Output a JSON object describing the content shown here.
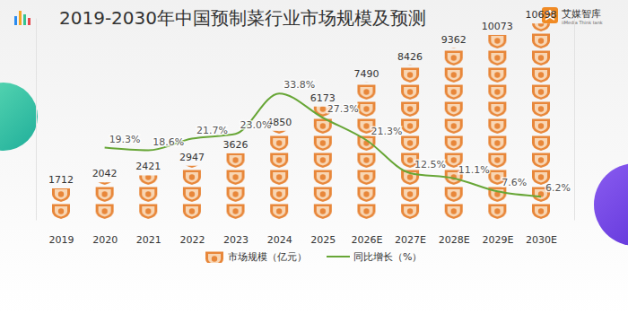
{
  "chart_data": {
    "type": "bar",
    "title": "2019-2030年中国预制菜行业市场规模及预测",
    "annotations": [
      "艾媒智库",
      "iiMedia Think tank"
    ],
    "categories": [
      "2019",
      "2020",
      "2021",
      "2022",
      "2023",
      "2024",
      "2025",
      "2026E",
      "2027E",
      "2028E",
      "2029E",
      "2030E"
    ],
    "series": [
      {
        "name": "市场规模（亿元）",
        "type": "bar",
        "color": "#e8873a",
        "marker": "icon",
        "data_labels": true,
        "values": [
          1712,
          2042,
          2421,
          2947,
          3626,
          4850,
          6173,
          7490,
          8426,
          9362,
          10073,
          10698
        ]
      },
      {
        "name": "同比增长（%）",
        "type": "line",
        "axis": "y2",
        "color": "#67a636",
        "line_style": "smooth",
        "data_labels": true,
        "values": [
          null,
          19.3,
          18.6,
          21.7,
          23.0,
          33.8,
          27.3,
          21.3,
          12.5,
          11.1,
          7.6,
          6.2
        ],
        "value_labels": [
          null,
          "19.3%",
          "18.6%",
          "21.7%",
          "23.0%",
          "33.8%",
          "27.3%",
          "21.3%",
          "12.5%",
          "11.1%",
          "7.6%",
          "6.2%"
        ]
      }
    ],
    "ylim": [
      0,
      11000
    ],
    "y2lim": [
      0,
      54
    ],
    "tick_labels": "x",
    "legend": "bottom"
  }
}
